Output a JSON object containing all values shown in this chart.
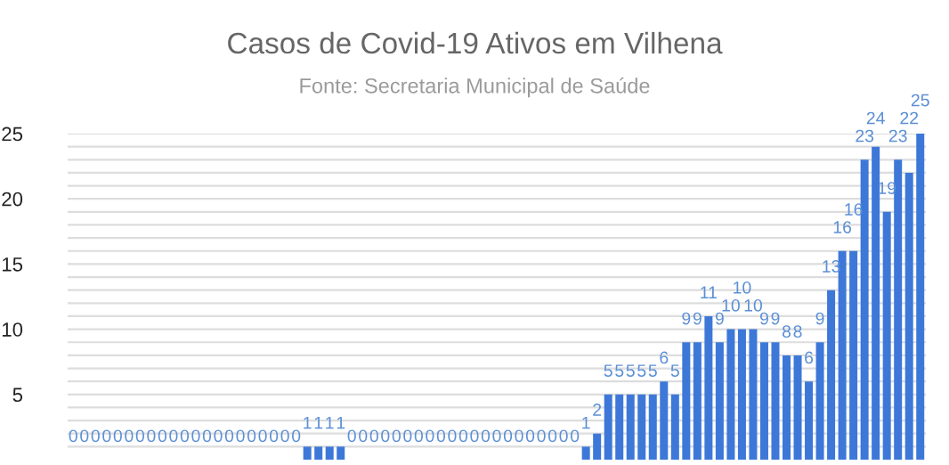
{
  "chart_data": {
    "type": "bar",
    "title": "Casos de Covid-19 Ativos em Vilhena",
    "subtitle": "Fonte: Secretaria Municipal de Saúde",
    "categories": [
      null,
      null,
      null,
      null,
      null,
      null,
      null,
      null,
      null,
      null,
      null,
      null,
      null,
      null,
      null,
      null,
      null,
      null,
      null,
      null,
      null,
      null,
      null,
      null,
      null,
      null,
      null,
      null,
      null,
      null,
      null,
      null,
      null,
      null,
      null,
      null,
      null,
      null,
      null,
      null,
      null,
      null,
      null,
      null,
      null,
      null,
      null,
      null,
      null,
      null,
      null,
      null,
      null,
      null,
      null,
      null,
      null,
      null,
      null,
      null,
      null,
      null,
      null,
      null,
      null,
      null,
      null,
      null,
      null,
      null,
      null,
      null,
      null,
      null,
      null,
      null,
      null
    ],
    "values": [
      0,
      0,
      0,
      0,
      0,
      0,
      0,
      0,
      0,
      0,
      0,
      0,
      0,
      0,
      0,
      0,
      0,
      0,
      0,
      0,
      0,
      1,
      1,
      1,
      1,
      0,
      0,
      0,
      0,
      0,
      0,
      0,
      0,
      0,
      0,
      0,
      0,
      0,
      0,
      0,
      0,
      0,
      0,
      0,
      0,
      0,
      1,
      2,
      5,
      5,
      5,
      5,
      5,
      6,
      5,
      9,
      9,
      11,
      9,
      10,
      10,
      10,
      9,
      9,
      8,
      8,
      6,
      9,
      13,
      16,
      16,
      23,
      24,
      19,
      23,
      22,
      25
    ],
    "color": "#3d78d8",
    "data_labels": true,
    "grid": "y",
    "ylim": [
      0,
      25
    ],
    "yticks": [
      {
        "value": 1,
        "label": null
      },
      {
        "value": 2,
        "label": null
      },
      {
        "value": 3,
        "label": null
      },
      {
        "value": 4,
        "label": null
      },
      5,
      {
        "value": 6,
        "label": null
      },
      {
        "value": 7,
        "label": null
      },
      {
        "value": 8,
        "label": null
      },
      {
        "value": 9,
        "label": null
      },
      10,
      {
        "value": 11,
        "label": null
      },
      {
        "value": 12,
        "label": null
      },
      {
        "value": 13,
        "label": null
      },
      {
        "value": 14,
        "label": null
      },
      15,
      {
        "value": 16,
        "label": null
      },
      {
        "value": 17,
        "label": null
      },
      {
        "value": 18,
        "label": null
      },
      {
        "value": 19,
        "label": null
      },
      20,
      {
        "value": 21,
        "label": null
      },
      {
        "value": 22,
        "label": null
      },
      {
        "value": 23,
        "label": null
      },
      {
        "value": 24,
        "label": null
      },
      25
    ]
  }
}
